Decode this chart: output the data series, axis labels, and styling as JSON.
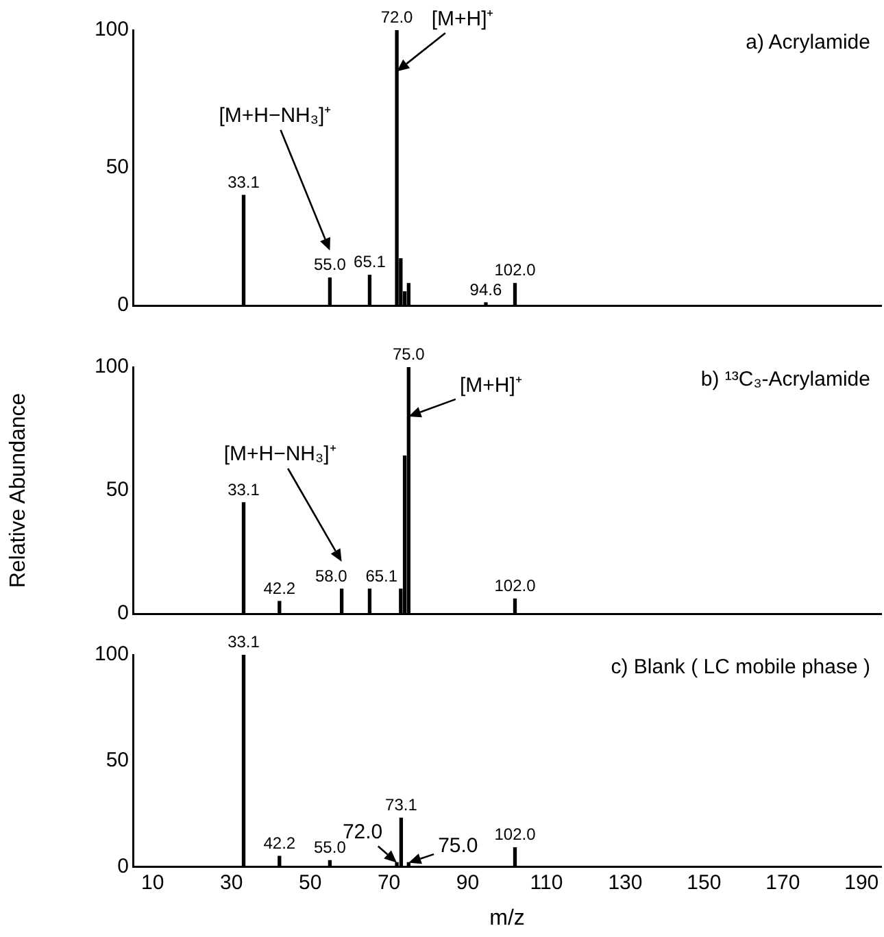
{
  "chart_data": [
    {
      "type": "bar",
      "title": "a) Acrylamide",
      "color": "#000000",
      "x": [
        33.1,
        55.0,
        65.1,
        72.0,
        73,
        74,
        75,
        94.6,
        102.0
      ],
      "values": [
        40,
        10,
        11,
        100,
        17,
        5,
        8,
        1,
        8
      ],
      "xlim": [
        5,
        195
      ],
      "xticks": [
        10,
        30,
        50,
        70,
        90,
        110,
        130,
        150,
        170,
        190
      ],
      "ylim": [
        0,
        100
      ],
      "yticks": [
        0,
        50,
        100
      ],
      "tick_labels": "y",
      "annotations": [
        {
          "text": "33.1",
          "x": 33.1,
          "y": 40
        },
        {
          "text": "55.0",
          "x": 55.0,
          "y": 10
        },
        {
          "text": "65.1",
          "x": 65.1,
          "y": 11
        },
        {
          "text": "72.0",
          "x": 72.0,
          "y": 100
        },
        {
          "text": "94.6",
          "x": 94.6,
          "y": 1
        },
        {
          "text": "102.0",
          "x": 102.0,
          "y": 8
        },
        {
          "text": "[M+H]⁺",
          "x": 72.0,
          "y": 85
        },
        "[M+H−NH₃]⁺"
      ]
    },
    {
      "type": "bar",
      "title": "b) ¹³C₃-Acrylamide",
      "ylabel": "Relative Abundance",
      "color": "#000000",
      "x": [
        33.1,
        42.2,
        58.0,
        65.1,
        73,
        74,
        75.0,
        102.0
      ],
      "values": [
        45,
        5,
        10,
        10,
        10,
        64,
        100,
        6
      ],
      "xlim": [
        5,
        195
      ],
      "xticks": [
        10,
        30,
        50,
        70,
        90,
        110,
        130,
        150,
        170,
        190
      ],
      "ylim": [
        0,
        100
      ],
      "yticks": [
        0,
        50,
        100
      ],
      "tick_labels": "y",
      "annotations": [
        {
          "text": "33.1",
          "x": 33.1,
          "y": 45
        },
        {
          "text": "42.2",
          "x": 42.2,
          "y": 5
        },
        {
          "text": "58.0",
          "x": 58.0,
          "y": 10
        },
        {
          "text": "65.1",
          "x": 65.1,
          "y": 10
        },
        {
          "text": "75.0",
          "x": 75.0,
          "y": 100
        },
        {
          "text": "102.0",
          "x": 102.0,
          "y": 6
        },
        {
          "text": "[M+H]⁺",
          "x": 75.0,
          "y": 80
        },
        "[M+H−NH₃]⁺"
      ]
    },
    {
      "type": "bar",
      "title": "c) Blank ( LC mobile phase )",
      "xlabel": "m/z",
      "color": "#000000",
      "x": [
        33.1,
        42.2,
        55.0,
        72.0,
        73.1,
        75.0,
        102.0
      ],
      "values": [
        100,
        5,
        3,
        2,
        23,
        2,
        9
      ],
      "xlim": [
        5,
        195
      ],
      "xticks": [
        10,
        30,
        50,
        70,
        90,
        110,
        130,
        150,
        170,
        190
      ],
      "ylim": [
        0,
        100
      ],
      "yticks": [
        0,
        50,
        100
      ],
      "annotations": [
        {
          "text": "33.1",
          "x": 33.1,
          "y": 100
        },
        {
          "text": "42.2",
          "x": 42.2,
          "y": 5
        },
        {
          "text": "55.0",
          "x": 55.0,
          "y": 3
        },
        {
          "text": "73.1",
          "x": 73.1,
          "y": 23
        },
        {
          "text": "102.0",
          "x": 102.0,
          "y": 9
        },
        {
          "text": "72.0",
          "x": 72.0,
          "y": 2
        },
        {
          "text": "75.0",
          "x": 75.0,
          "y": 2
        }
      ]
    }
  ]
}
